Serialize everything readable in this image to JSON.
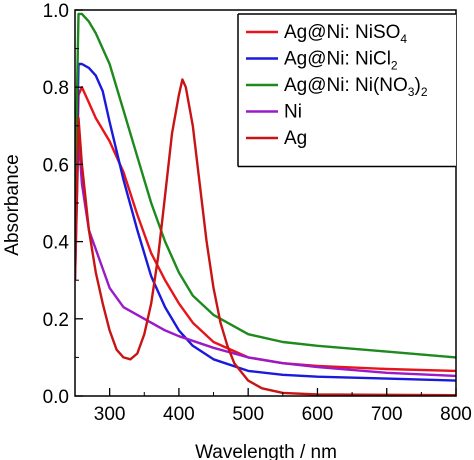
{
  "chart_data": {
    "type": "line",
    "title": "",
    "xlabel": "Wavelength / nm",
    "ylabel": "Absorbance",
    "xlim": [
      250,
      800
    ],
    "ylim": [
      0,
      1.0
    ],
    "xticks": [
      "300",
      "400",
      "500",
      "600",
      "700",
      "800"
    ],
    "yticks": [
      "0.0",
      "0.2",
      "0.4",
      "0.6",
      "0.8",
      "1.0"
    ],
    "legend_position": "top-right",
    "legend": [
      {
        "base": "Ag@Ni: NiSO",
        "sub": "4",
        "tail": "",
        "color": "#e8141b"
      },
      {
        "base": "Ag@Ni: NiCl",
        "sub": "2",
        "tail": "",
        "color": "#1a1adc"
      },
      {
        "base": "Ag@Ni: Ni(NO",
        "sub": "3",
        "tail": ")",
        "sub2": "2",
        "color": "#1e8a1e"
      },
      {
        "base": "Ni",
        "sub": "",
        "tail": "",
        "color": "#9a1ac8"
      },
      {
        "base": "Ag",
        "sub": "",
        "tail": "",
        "color": "#c81414"
      }
    ],
    "series": [
      {
        "name": "Ag@Ni: NiSO4",
        "color": "#e8141b",
        "x": [
          250,
          255,
          260,
          270,
          280,
          300,
          320,
          340,
          360,
          380,
          400,
          420,
          450,
          500,
          550,
          600,
          700,
          800
        ],
        "y": [
          0.35,
          0.78,
          0.8,
          0.76,
          0.72,
          0.66,
          0.58,
          0.47,
          0.37,
          0.3,
          0.24,
          0.19,
          0.14,
          0.1,
          0.085,
          0.078,
          0.07,
          0.065
        ]
      },
      {
        "name": "Ag@Ni: NiCl2",
        "color": "#1a1adc",
        "x": [
          250,
          255,
          260,
          270,
          280,
          290,
          300,
          320,
          340,
          360,
          380,
          400,
          420,
          450,
          500,
          550,
          600,
          700,
          800
        ],
        "y": [
          0.4,
          0.86,
          0.86,
          0.85,
          0.83,
          0.79,
          0.71,
          0.56,
          0.43,
          0.31,
          0.23,
          0.17,
          0.13,
          0.095,
          0.065,
          0.055,
          0.05,
          0.045,
          0.04
        ]
      },
      {
        "name": "Ag@Ni: Ni(NO3)2",
        "color": "#1e8a1e",
        "x": [
          250,
          255,
          260,
          270,
          280,
          300,
          320,
          340,
          360,
          380,
          400,
          420,
          450,
          500,
          550,
          600,
          700,
          800
        ],
        "y": [
          0.5,
          0.99,
          0.99,
          0.97,
          0.94,
          0.86,
          0.74,
          0.62,
          0.5,
          0.4,
          0.32,
          0.26,
          0.21,
          0.16,
          0.14,
          0.13,
          0.115,
          0.1
        ]
      },
      {
        "name": "Ni",
        "color": "#9a1ac8",
        "x": [
          250,
          255,
          260,
          270,
          280,
          300,
          320,
          340,
          360,
          380,
          400,
          450,
          500,
          550,
          600,
          700,
          800
        ],
        "y": [
          0.3,
          0.68,
          0.55,
          0.43,
          0.38,
          0.28,
          0.23,
          0.21,
          0.19,
          0.17,
          0.155,
          0.125,
          0.1,
          0.085,
          0.075,
          0.06,
          0.052
        ]
      },
      {
        "name": "Ag",
        "color": "#c81414",
        "x": [
          250,
          255,
          260,
          270,
          280,
          290,
          300,
          310,
          320,
          330,
          340,
          350,
          360,
          370,
          380,
          390,
          400,
          405,
          410,
          420,
          430,
          440,
          450,
          460,
          470,
          480,
          500,
          520,
          550,
          600,
          700,
          800
        ],
        "y": [
          0.3,
          0.72,
          0.6,
          0.43,
          0.32,
          0.24,
          0.17,
          0.12,
          0.1,
          0.095,
          0.11,
          0.16,
          0.24,
          0.36,
          0.52,
          0.68,
          0.78,
          0.82,
          0.8,
          0.7,
          0.55,
          0.4,
          0.28,
          0.19,
          0.13,
          0.085,
          0.04,
          0.02,
          0.008,
          0.004,
          0.003,
          0.002
        ]
      }
    ]
  }
}
